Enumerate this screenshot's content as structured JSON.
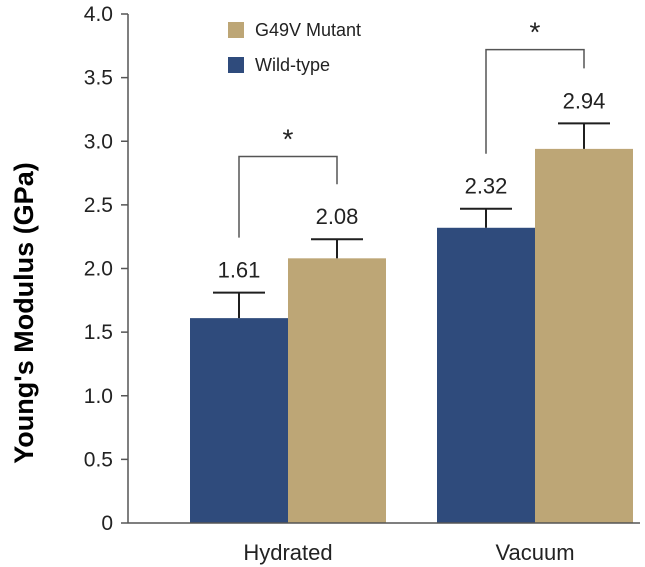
{
  "chart_data": {
    "type": "bar",
    "title": "",
    "xlabel": "",
    "ylabel": "Young's Modulus (GPa)",
    "ylim": [
      0,
      4.0
    ],
    "yticks": [
      "0",
      "0.5",
      "1.0",
      "1.5",
      "2.0",
      "2.5",
      "3.0",
      "3.5",
      "4.0"
    ],
    "categories": [
      "Hydrated",
      "Vacuum"
    ],
    "series": [
      {
        "name": "Wild-type",
        "color": "#2f4b7c",
        "values": [
          1.61,
          2.32
        ],
        "errors": [
          0.2,
          0.15
        ],
        "labels": [
          "1.61",
          "2.32"
        ]
      },
      {
        "name": "G49V Mutant",
        "color": "#bda676",
        "values": [
          2.08,
          2.94
        ],
        "errors": [
          0.15,
          0.2
        ],
        "labels": [
          "2.08",
          "2.94"
        ]
      }
    ],
    "legend": {
      "position": "top-left",
      "entries": [
        "G49V Mutant",
        "Wild-type"
      ]
    },
    "significance": [
      {
        "category": "Hydrated",
        "label": "*",
        "level": 2.88
      },
      {
        "category": "Vacuum",
        "label": "*",
        "level": 3.72
      }
    ]
  }
}
